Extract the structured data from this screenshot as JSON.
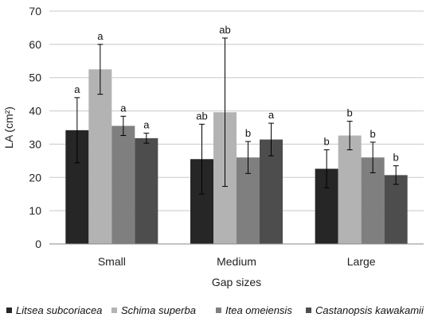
{
  "chart_data": {
    "type": "bar",
    "xlabel": "Gap sizes",
    "ylabel": "LA (cm²)",
    "ylim": [
      0,
      70
    ],
    "yticks": [
      0,
      10,
      20,
      30,
      40,
      50,
      60,
      70
    ],
    "grid": "horizontal",
    "legend_position": "bottom",
    "categories": [
      "Small",
      "Medium",
      "Large"
    ],
    "series": [
      {
        "name": "Litsea subcoriacea",
        "color": "#262626",
        "values": [
          34.2,
          25.5,
          22.6
        ],
        "error": [
          9.8,
          10.5,
          5.7
        ],
        "labels": [
          "a",
          "ab",
          "b"
        ]
      },
      {
        "name": "Schima superba",
        "color": "#b3b3b3",
        "values": [
          52.5,
          39.6,
          32.6
        ],
        "error": [
          7.5,
          22.3,
          4.3
        ],
        "labels": [
          "a",
          "ab",
          "b"
        ]
      },
      {
        "name": "Itea omeiensis",
        "color": "#7f7f7f",
        "values": [
          35.5,
          26.0,
          26.0
        ],
        "error": [
          2.9,
          4.8,
          4.6
        ],
        "labels": [
          "a",
          "b",
          "b"
        ]
      },
      {
        "name": "Castanopsis kawakamii",
        "color": "#4d4d4d",
        "values": [
          31.8,
          31.4,
          20.7
        ],
        "error": [
          1.5,
          4.9,
          2.8
        ],
        "labels": [
          "a",
          "a",
          "b"
        ]
      }
    ]
  }
}
